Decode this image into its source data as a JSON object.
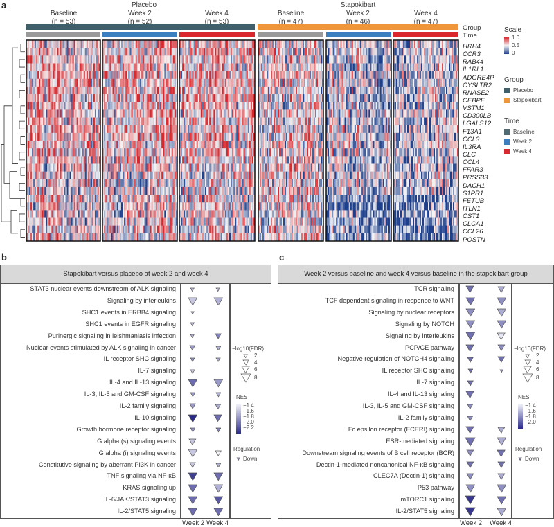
{
  "panel_labels": {
    "a": "a",
    "b": "b",
    "c": "c"
  },
  "heatmap": {
    "arms": [
      {
        "name": "Placebo",
        "columns": [
          {
            "time": "Baseline",
            "n_label": "(n = 53)",
            "n": 53
          },
          {
            "time": "Week 2",
            "n_label": "(n = 52)",
            "n": 52
          },
          {
            "time": "Week 4",
            "n_label": "(n = 53)",
            "n": 53
          }
        ]
      },
      {
        "name": "Stapokibart",
        "columns": [
          {
            "time": "Baseline",
            "n_label": "(n = 47)",
            "n": 47
          },
          {
            "time": "Week 2",
            "n_label": "(n = 46)",
            "n": 46
          },
          {
            "time": "Week 4",
            "n_label": "(n = 47)",
            "n": 47
          }
        ]
      }
    ],
    "annotation_rows": {
      "group": "Group",
      "time": "Time"
    },
    "genes": [
      "HRH4",
      "CCR3",
      "RAB44",
      "IL1RL1",
      "ADGRE4P",
      "CYSLTR2",
      "RNASE2",
      "CEBPE",
      "VSTM1",
      "CD300LB",
      "LGALS12",
      "F13A1",
      "CCL3",
      "IL3RA",
      "CLC",
      "CCL4",
      "FFAR3",
      "PRSS33",
      "DACH1",
      "S1PR1",
      "FETUB",
      "ITLN1",
      "CST1",
      "CLCA1",
      "CCL26",
      "POSTN"
    ],
    "legend": {
      "scale_title": "Scale",
      "scale_ticks": [
        "1.0",
        "0.5",
        "0"
      ],
      "scale_colors": [
        "#d7282e",
        "#f4f4f4",
        "#1d3f8c"
      ],
      "group_title": "Group",
      "group_items": [
        {
          "label": "Placebo",
          "color": "#3f5f6a"
        },
        {
          "label": "Stapokibart",
          "color": "#ef963a"
        }
      ],
      "time_title": "Time",
      "time_items": [
        {
          "label": "Baseline",
          "color": "#4f6a72"
        },
        {
          "label": "Week 2",
          "color": "#3b7fc0"
        },
        {
          "label": "Week 4",
          "color": "#d9282e"
        }
      ],
      "time_bar_colors": [
        "#9a9a9a",
        "#3b7fc0",
        "#d9282e"
      ]
    }
  },
  "chart_data": [
    {
      "type": "heatmap",
      "rows": "genes",
      "columns": [
        "Placebo Baseline",
        "Placebo Week 2",
        "Placebo Week 4",
        "Stapokibart Baseline",
        "Stapokibart Week 2",
        "Stapokibart Week 4"
      ],
      "value_range": [
        0,
        1.0
      ]
    },
    {
      "type": "scatter",
      "title": "Stapokibart versus placebo at week 2 and week 4",
      "columns": [
        "Week 2",
        "Week 4"
      ],
      "size_legend_title": "−log10(FDR)",
      "size_ticks": [
        2,
        4,
        6,
        8
      ],
      "color_legend_title": "NES",
      "color_ticks": [
        "−1.4",
        "−1.6",
        "−1.8",
        "−2.0",
        "−2.2"
      ],
      "color_range": [
        -1.3,
        -2.2
      ],
      "regulation_title": "Regulation",
      "regulation_items": [
        "Down"
      ],
      "rows": [
        {
          "pathway": "STAT3 nuclear events downstream of ALK signaling",
          "week2": {
            "fdr": 2,
            "nes": -1.5
          },
          "week4": {
            "fdr": 2,
            "nes": -1.5
          }
        },
        {
          "pathway": "Signaling by interleukins",
          "week2": {
            "fdr": 7,
            "nes": -1.5
          },
          "week4": {
            "fdr": 7,
            "nes": -1.6
          }
        },
        {
          "pathway": "SHC1 events in ERBB4 signaling",
          "week2": {
            "fdr": 1.2,
            "nes": -1.6
          },
          "week4": null
        },
        {
          "pathway": "SHC1 events in EGFR signaling",
          "week2": {
            "fdr": 2,
            "nes": -1.6
          },
          "week4": null
        },
        {
          "pathway": "Purinergic signaling in leishmaniasis infection",
          "week2": {
            "fdr": 2,
            "nes": -1.6
          },
          "week4": {
            "fdr": 4,
            "nes": -1.8
          }
        },
        {
          "pathway": "Nuclear events stimulated by ALK signaling in cancer",
          "week2": {
            "fdr": 3.5,
            "nes": -1.7
          },
          "week4": {
            "fdr": 3,
            "nes": -1.6
          }
        },
        {
          "pathway": "IL receptor SHC signaling",
          "week2": {
            "fdr": 2.5,
            "nes": -1.7
          },
          "week4": {
            "fdr": 2.5,
            "nes": -1.6
          }
        },
        {
          "pathway": "IL-7 signaling",
          "week2": {
            "fdr": 2.5,
            "nes": -1.5
          },
          "week4": null
        },
        {
          "pathway": "IL-4 and IL-13 signaling",
          "week2": {
            "fdr": 7,
            "nes": -1.9
          },
          "week4": {
            "fdr": 7,
            "nes": -1.7
          }
        },
        {
          "pathway": "IL-3, IL-5 and GM-CSF signaling",
          "week2": {
            "fdr": 3,
            "nes": -1.7
          },
          "week4": {
            "fdr": 3,
            "nes": -1.6
          }
        },
        {
          "pathway": "IL-2 family signaling",
          "week2": {
            "fdr": 4,
            "nes": -1.7
          },
          "week4": {
            "fdr": 3.5,
            "nes": -1.6
          }
        },
        {
          "pathway": "IL-10 signaling",
          "week2": {
            "fdr": 7,
            "nes": -2.2
          },
          "week4": {
            "fdr": 6,
            "nes": -1.9
          }
        },
        {
          "pathway": "Growth hormone receptor signaling",
          "week2": {
            "fdr": 3,
            "nes": -1.7
          },
          "week4": {
            "fdr": 3,
            "nes": -1.8
          }
        },
        {
          "pathway": "G alpha (s) signaling events",
          "week2": {
            "fdr": 5,
            "nes": -1.5
          },
          "week4": null
        },
        {
          "pathway": "G alpha (i) signaling events",
          "week2": {
            "fdr": 7,
            "nes": -1.5
          },
          "week4": {
            "fdr": 4,
            "nes": -1.3
          }
        },
        {
          "pathway": "Constitutive signaling by aberrant PI3K in cancer",
          "week2": {
            "fdr": 4,
            "nes": -1.5
          },
          "week4": {
            "fdr": 3,
            "nes": -1.6
          }
        },
        {
          "pathway": "TNF signaling via NF-κB",
          "week2": {
            "fdr": 7,
            "nes": -2.1
          },
          "week4": {
            "fdr": 7,
            "nes": -1.9
          }
        },
        {
          "pathway": "KRAS signaling up",
          "week2": {
            "fdr": 7,
            "nes": -1.9
          },
          "week4": {
            "fdr": 7,
            "nes": -1.6
          }
        },
        {
          "pathway": "IL-6/JAK/STAT3 signaling",
          "week2": {
            "fdr": 7,
            "nes": -1.9
          },
          "week4": {
            "fdr": 7,
            "nes": -2.0
          }
        },
        {
          "pathway": "IL-2/STAT5 signaling",
          "week2": {
            "fdr": 7,
            "nes": -1.9
          },
          "week4": {
            "fdr": 7,
            "nes": -1.9
          }
        }
      ]
    },
    {
      "type": "scatter",
      "title": "Week 2 versus baseline and week 4 versus baseline in the stapokibart group",
      "columns": [
        "Week 2",
        "Week 4"
      ],
      "size_legend_title": "−log10(FDR)",
      "size_ticks": [
        2,
        4,
        6,
        8
      ],
      "color_legend_title": "NES",
      "color_ticks": [
        "−1.4",
        "−1.6",
        "−1.8",
        "−2.0"
      ],
      "color_range": [
        -1.35,
        -2.05
      ],
      "regulation_title": "Regulation",
      "regulation_items": [
        "Down"
      ],
      "rows": [
        {
          "pathway": "TCR signaling",
          "week2": {
            "fdr": 6,
            "nes": -1.8
          },
          "week4": {
            "fdr": 5,
            "nes": -1.6
          }
        },
        {
          "pathway": "TCF dependent signaling in response to WNT",
          "week2": {
            "fdr": 7,
            "nes": -1.8
          },
          "week4": {
            "fdr": 7,
            "nes": -1.7
          }
        },
        {
          "pathway": "Signaling by nuclear receptors",
          "week2": {
            "fdr": 7,
            "nes": -1.7
          },
          "week4": {
            "fdr": 7,
            "nes": -1.6
          }
        },
        {
          "pathway": "Signaling by NOTCH",
          "week2": {
            "fdr": 7,
            "nes": -1.7
          },
          "week4": {
            "fdr": 7,
            "nes": -1.7
          }
        },
        {
          "pathway": "Signaling by interleukins",
          "week2": {
            "fdr": 7,
            "nes": -1.8
          },
          "week4": {
            "fdr": 6,
            "nes": -1.4
          }
        },
        {
          "pathway": "PCP/CE pathway",
          "week2": {
            "fdr": 6,
            "nes": -1.8
          },
          "week4": {
            "fdr": 5,
            "nes": -1.7
          }
        },
        {
          "pathway": "Negative regulation of NOTCH4 signaling",
          "week2": {
            "fdr": 4,
            "nes": -1.8
          },
          "week4": {
            "fdr": 5,
            "nes": -1.8
          }
        },
        {
          "pathway": "IL receptor SHC signaling",
          "week2": {
            "fdr": 3,
            "nes": -1.8
          },
          "week4": {
            "fdr": 1.3,
            "nes": -1.7
          }
        },
        {
          "pathway": "IL-7 signaling",
          "week2": {
            "fdr": 4,
            "nes": -1.8
          },
          "week4": null
        },
        {
          "pathway": "IL-4 and IL-13 signaling",
          "week2": {
            "fdr": 6,
            "nes": -1.8
          },
          "week4": null
        },
        {
          "pathway": "IL-3, IL-5 and GM-CSF signaling",
          "week2": {
            "fdr": 3.5,
            "nes": -1.7
          },
          "week4": null
        },
        {
          "pathway": "IL-2 family signaling",
          "week2": {
            "fdr": 3.5,
            "nes": -1.7
          },
          "week4": null
        },
        {
          "pathway": "Fc epsilon receptor (FCERI) signaling",
          "week2": {
            "fdr": 6,
            "nes": -1.8
          },
          "week4": {
            "fdr": 5,
            "nes": -1.6
          }
        },
        {
          "pathway": "ESR-mediated signaling",
          "week2": {
            "fdr": 8,
            "nes": -1.8
          },
          "week4": {
            "fdr": 7,
            "nes": -1.6
          }
        },
        {
          "pathway": "Downstream signaling events of B cell receptor (BCR)",
          "week2": {
            "fdr": 5,
            "nes": -1.7
          },
          "week4": {
            "fdr": 6,
            "nes": -1.8
          }
        },
        {
          "pathway": "Dectin-1-mediated noncanonical NF-κB signaling",
          "week2": {
            "fdr": 5,
            "nes": -1.8
          },
          "week4": {
            "fdr": 5,
            "nes": -1.8
          }
        },
        {
          "pathway": "CLEC7A (Dectin-1) signaling",
          "week2": {
            "fdr": 5,
            "nes": -1.7
          },
          "week4": {
            "fdr": 5,
            "nes": -1.6
          }
        },
        {
          "pathway": "P53 pathway",
          "week2": {
            "fdr": 7,
            "nes": -1.7
          },
          "week4": {
            "fdr": 7,
            "nes": -1.7
          }
        },
        {
          "pathway": "mTORC1 signaling",
          "week2": {
            "fdr": 8,
            "nes": -2.0
          },
          "week4": {
            "fdr": 7,
            "nes": -1.8
          }
        },
        {
          "pathway": "IL-2/STAT5 signaling",
          "week2": {
            "fdr": 8,
            "nes": -2.0
          },
          "week4": {
            "fdr": 7,
            "nes": -1.6
          }
        }
      ]
    }
  ]
}
